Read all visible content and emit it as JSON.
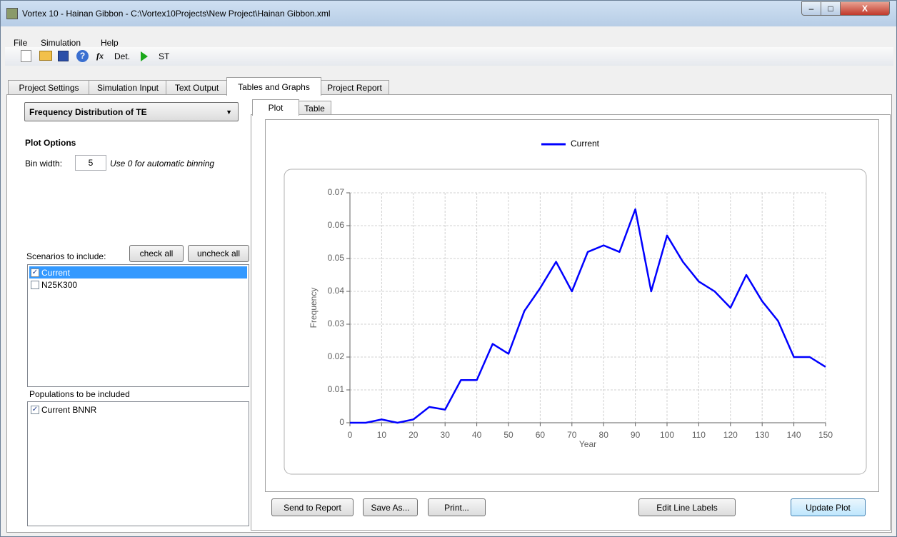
{
  "window": {
    "title": "Vortex 10 - Hainan Gibbon - C:\\Vortex10Projects\\New Project\\Hainan Gibbon.xml"
  },
  "menu": [
    "File",
    "Simulation",
    "Help"
  ],
  "toolbar": [
    "Det.",
    "ST"
  ],
  "tabs": [
    "Project Settings",
    "Simulation Input",
    "Text Output",
    "Tables and Graphs",
    "Project Report"
  ],
  "left": {
    "dropdown": "Frequency Distribution of TE",
    "plot_options": "Plot Options",
    "bin_width_label": "Bin width:",
    "bin_width": 5,
    "bin_hint": "Use 0 for automatic binning",
    "scenarios_label": "Scenarios to include:",
    "check_all": "check all",
    "uncheck_all": "uncheck all",
    "scenarios": [
      {
        "name": "Current",
        "checked": true
      },
      {
        "name": "N25K300",
        "checked": false
      }
    ],
    "populations_label": "Populations to be included",
    "populations": [
      {
        "name": "Current BNNR",
        "checked": true
      }
    ]
  },
  "subtabs": [
    "Plot",
    "Table"
  ],
  "buttons": [
    "Send to Report",
    "Save As...",
    "Print...",
    "Edit Line Labels",
    "Update Plot"
  ],
  "chart_data": {
    "type": "line",
    "x_label": "Year",
    "y_label": "Frequency",
    "x": [
      0,
      5,
      10,
      15,
      20,
      25,
      30,
      35,
      40,
      45,
      50,
      55,
      60,
      65,
      70,
      75,
      80,
      85,
      90,
      95,
      100,
      105,
      110,
      115,
      120,
      125,
      130,
      135,
      140,
      145,
      150
    ],
    "series": [
      {
        "name": "Current",
        "color": "#0000ff",
        "values": [
          0,
          0,
          0.001,
          0,
          0.001,
          0.0048,
          0.004,
          0.013,
          0.013,
          0.024,
          0.021,
          0.034,
          0.041,
          0.049,
          0.04,
          0.052,
          0.054,
          0.052,
          0.065,
          0.04,
          0.057,
          0.049,
          0.043,
          0.04,
          0.035,
          0.045,
          0.037,
          0.031,
          0.02,
          0.02,
          0.017
        ]
      }
    ],
    "xlim": [
      0,
      150
    ],
    "xticks": [
      0,
      10,
      20,
      30,
      40,
      50,
      60,
      70,
      80,
      90,
      100,
      110,
      120,
      130,
      140,
      150
    ],
    "ylim": [
      0,
      0.07
    ],
    "yticks": [
      0,
      0.01,
      0.02,
      0.03,
      0.04,
      0.05,
      0.06,
      0.07
    ],
    "grid": true,
    "legend": "top"
  }
}
